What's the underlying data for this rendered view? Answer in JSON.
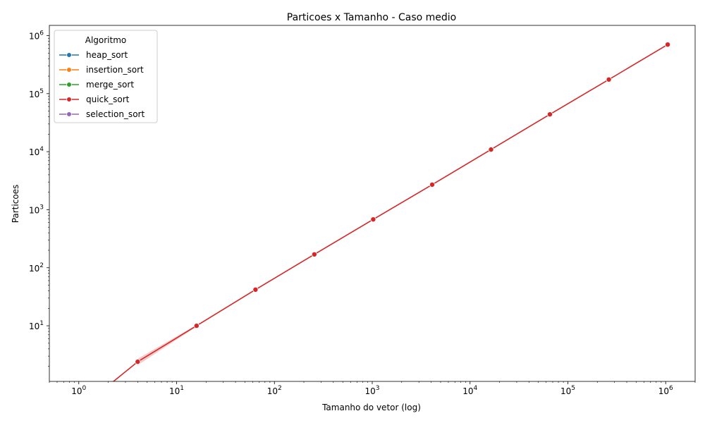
{
  "chart_data": {
    "type": "line",
    "title": "Particoes x Tamanho - Caso medio",
    "xlabel": "Tamanho do vetor (log)",
    "ylabel": "Particoes",
    "xscale": "log",
    "yscale": "log",
    "xlim": [
      0.5,
      2000000
    ],
    "ylim": [
      1.1,
      1500000
    ],
    "x_ticks": [
      {
        "value": 1,
        "base": "10",
        "exp": "0"
      },
      {
        "value": 10,
        "base": "10",
        "exp": "1"
      },
      {
        "value": 100,
        "base": "10",
        "exp": "2"
      },
      {
        "value": 1000,
        "base": "10",
        "exp": "3"
      },
      {
        "value": 10000,
        "base": "10",
        "exp": "4"
      },
      {
        "value": 100000,
        "base": "10",
        "exp": "5"
      },
      {
        "value": 1000000,
        "base": "10",
        "exp": "6"
      }
    ],
    "y_ticks": [
      {
        "value": 10,
        "base": "10",
        "exp": "1"
      },
      {
        "value": 100,
        "base": "10",
        "exp": "2"
      },
      {
        "value": 1000,
        "base": "10",
        "exp": "3"
      },
      {
        "value": 10000,
        "base": "10",
        "exp": "4"
      },
      {
        "value": 100000,
        "base": "10",
        "exp": "5"
      },
      {
        "value": 1000000,
        "base": "10",
        "exp": "6"
      }
    ],
    "grid": false,
    "legend": {
      "title": "Algoritmo",
      "placement": "top-left",
      "entries": [
        {
          "name": "heap_sort",
          "color": "#1f77b4"
        },
        {
          "name": "insertion_sort",
          "color": "#ff7f0e"
        },
        {
          "name": "merge_sort",
          "color": "#2ca02c"
        },
        {
          "name": "quick_sort",
          "color": "#d62728"
        },
        {
          "name": "selection_sort",
          "color": "#9467bd"
        }
      ]
    },
    "series": [
      {
        "name": "quick_sort",
        "color": "#d62728",
        "x": [
          1,
          4,
          16,
          64,
          256,
          1024,
          4096,
          16384,
          65536,
          262144,
          1048576
        ],
        "y": [
          0,
          2.4,
          10,
          42,
          170,
          680,
          2700,
          10900,
          44000,
          175000,
          700000
        ],
        "marker_from_index": 1,
        "ci_band_upper": [
          null,
          2.7,
          10.3
        ],
        "ci_band_lower": [
          null,
          2.1,
          9.7
        ]
      }
    ]
  }
}
